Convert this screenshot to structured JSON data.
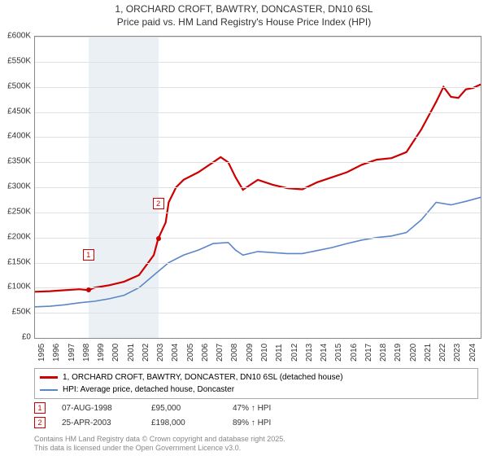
{
  "title": {
    "line1": "1, ORCHARD CROFT, BAWTRY, DONCASTER, DN10 6SL",
    "line2": "Price paid vs. HM Land Registry's House Price Index (HPI)",
    "fontsize": 12,
    "color": "#333333"
  },
  "chart": {
    "type": "line",
    "background_color": "#ffffff",
    "grid_color": "#e0e0e0",
    "axis_color": "#888888",
    "x_years": [
      1995,
      1996,
      1997,
      1998,
      1999,
      2000,
      2001,
      2002,
      2003,
      2004,
      2005,
      2006,
      2007,
      2008,
      2009,
      2010,
      2011,
      2012,
      2013,
      2014,
      2015,
      2016,
      2017,
      2018,
      2019,
      2020,
      2021,
      2022,
      2023,
      2024
    ],
    "y_ticks": [
      0,
      50,
      100,
      150,
      200,
      250,
      300,
      350,
      400,
      450,
      500,
      550,
      600
    ],
    "y_tick_labels": [
      "£0",
      "£50K",
      "£100K",
      "£150K",
      "£200K",
      "£250K",
      "£300K",
      "£350K",
      "£400K",
      "£450K",
      "£500K",
      "£550K",
      "£600K"
    ],
    "ylim": [
      0,
      600
    ],
    "xlim": [
      1995,
      2025
    ],
    "tick_fontsize": 10,
    "band": {
      "start_year": 1998.6,
      "end_year": 2003.3,
      "color": "#dde6ef",
      "opacity": 0.6
    },
    "series": [
      {
        "name_key": "legend.series1",
        "color": "#cc0000",
        "line_width": 2.2,
        "data": [
          [
            1995,
            92
          ],
          [
            1996,
            93
          ],
          [
            1997,
            95
          ],
          [
            1998,
            97
          ],
          [
            1998.6,
            95
          ],
          [
            1999,
            100
          ],
          [
            2000,
            105
          ],
          [
            2001,
            112
          ],
          [
            2002,
            125
          ],
          [
            2003,
            165
          ],
          [
            2003.3,
            198
          ],
          [
            2003.8,
            230
          ],
          [
            2004,
            270
          ],
          [
            2004.5,
            300
          ],
          [
            2005,
            315
          ],
          [
            2006,
            330
          ],
          [
            2007,
            350
          ],
          [
            2007.5,
            360
          ],
          [
            2008,
            350
          ],
          [
            2008.5,
            320
          ],
          [
            2009,
            295
          ],
          [
            2009.5,
            305
          ],
          [
            2010,
            315
          ],
          [
            2011,
            305
          ],
          [
            2012,
            298
          ],
          [
            2013,
            296
          ],
          [
            2014,
            310
          ],
          [
            2015,
            320
          ],
          [
            2016,
            330
          ],
          [
            2017,
            345
          ],
          [
            2018,
            355
          ],
          [
            2019,
            358
          ],
          [
            2020,
            370
          ],
          [
            2021,
            415
          ],
          [
            2022,
            470
          ],
          [
            2022.5,
            500
          ],
          [
            2023,
            480
          ],
          [
            2023.5,
            478
          ],
          [
            2024,
            495
          ],
          [
            2024.5,
            498
          ],
          [
            2025,
            505
          ]
        ]
      },
      {
        "name_key": "legend.series2",
        "color": "#5b87c7",
        "line_width": 1.6,
        "data": [
          [
            1995,
            62
          ],
          [
            1996,
            63
          ],
          [
            1997,
            66
          ],
          [
            1998,
            70
          ],
          [
            1999,
            73
          ],
          [
            2000,
            78
          ],
          [
            2001,
            85
          ],
          [
            2002,
            100
          ],
          [
            2003,
            125
          ],
          [
            2004,
            150
          ],
          [
            2005,
            165
          ],
          [
            2006,
            175
          ],
          [
            2007,
            188
          ],
          [
            2008,
            190
          ],
          [
            2008.5,
            175
          ],
          [
            2009,
            165
          ],
          [
            2010,
            172
          ],
          [
            2011,
            170
          ],
          [
            2012,
            168
          ],
          [
            2013,
            168
          ],
          [
            2014,
            174
          ],
          [
            2015,
            180
          ],
          [
            2016,
            188
          ],
          [
            2017,
            195
          ],
          [
            2018,
            200
          ],
          [
            2019,
            203
          ],
          [
            2020,
            210
          ],
          [
            2021,
            235
          ],
          [
            2022,
            270
          ],
          [
            2023,
            265
          ],
          [
            2024,
            272
          ],
          [
            2025,
            280
          ]
        ]
      }
    ],
    "chart_markers": [
      {
        "num": "1",
        "year": 1998.6,
        "value": 95,
        "label_y_offset": -50
      },
      {
        "num": "2",
        "year": 2003.3,
        "value": 198,
        "label_y_offset": -50
      }
    ]
  },
  "legend": {
    "series1": "1, ORCHARD CROFT, BAWTRY, DONCASTER, DN10 6SL (detached house)",
    "series2": "HPI: Average price, detached house, Doncaster",
    "fontsize": 10
  },
  "marker_rows": [
    {
      "num": "1",
      "date": "07-AUG-1998",
      "price": "£95,000",
      "pct": "47% ↑ HPI"
    },
    {
      "num": "2",
      "date": "25-APR-2003",
      "price": "£198,000",
      "pct": "89% ↑ HPI"
    }
  ],
  "footer": {
    "line1": "Contains HM Land Registry data © Crown copyright and database right 2025.",
    "line2": "This data is licensed under the Open Government Licence v3.0.",
    "color": "#888888",
    "fontsize": 9
  },
  "marker_style": {
    "border_color": "#cc0000",
    "text_color": "#cc0000",
    "size": 12
  }
}
